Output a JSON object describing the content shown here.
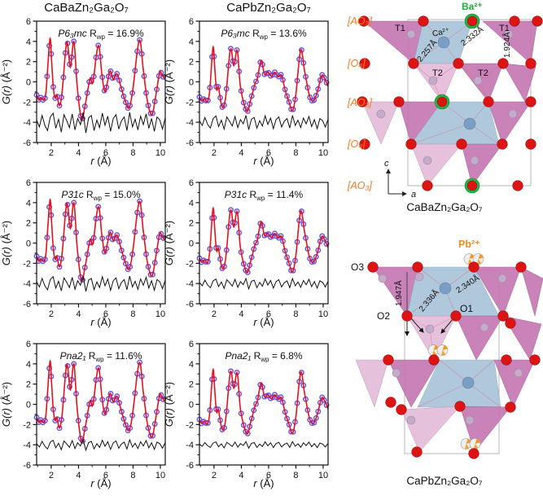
{
  "figure_titles": [
    "CaBaZn₂Ga₂O₇",
    "CaPbZn₂Ga₂O₇"
  ],
  "colors": {
    "data_marker": "#4629d9",
    "fit_line": "#e8101c",
    "diff_line": "#111111",
    "axis": "#111111",
    "orange_label": "#f47b20",
    "green_atom": "#26b043",
    "red_atom": "#dd1414",
    "grey_atom": "#c3abc9",
    "ca_atom": "#7b9ec4",
    "pink_dark": "#c478b2",
    "pink_light": "#e4bcd8",
    "blue_poly": "#a9c4d8",
    "pb_orange": "#f5991d"
  },
  "chart_data": {
    "type": "line",
    "xlabel_italic": "r",
    "xlabel_rest": " (Å)",
    "ylabel_italic": "G(r)",
    "ylabel_rest": " (Å⁻²)",
    "xlim": [
      0.93,
      10.36
    ],
    "ylim": [
      -6,
      6
    ],
    "xticks": [
      2,
      4,
      6,
      8,
      10
    ],
    "xminor": [
      1,
      3,
      5,
      7,
      9
    ],
    "yticks": [
      6,
      4,
      2,
      0,
      -2,
      -4,
      -6
    ],
    "yminor": [
      -5,
      -3,
      -1,
      1,
      3,
      5
    ],
    "r_label": "R",
    "r_sub": "wp",
    "eq": "=",
    "diff_offset": -4,
    "diff_noise": [
      0.15,
      -0.3,
      0.45,
      -0.2,
      -0.55,
      0.35,
      0.6,
      -0.4,
      0.2,
      -0.65,
      0.5,
      0.1,
      -0.35,
      0.55,
      -0.5,
      0.25,
      -0.15,
      0.65,
      -0.7,
      0.3,
      0.45,
      -0.55,
      0.15,
      -0.35,
      0.6,
      -0.2,
      0.4,
      -0.6,
      0.25,
      0.5,
      -0.45,
      0.1,
      0.35,
      -0.55,
      0.65,
      -0.3,
      0.2,
      -0.5,
      0.4,
      -0.15,
      0.55,
      -0.4,
      0.25,
      -0.6,
      0.35,
      0.15,
      -0.45,
      0.3
    ],
    "series": {
      "CaBa": [
        [
          0.93,
          -1.3
        ],
        [
          1.1,
          -1.8
        ],
        [
          1.25,
          -1.55
        ],
        [
          1.45,
          -1.8
        ],
        [
          1.62,
          -0.9
        ],
        [
          1.9,
          4.2
        ],
        [
          2.02,
          2.2
        ],
        [
          2.15,
          -0.5
        ],
        [
          2.28,
          -1.6
        ],
        [
          2.42,
          -1.3
        ],
        [
          2.6,
          -2.35
        ],
        [
          2.8,
          -1.0
        ],
        [
          3.14,
          3.9
        ],
        [
          3.4,
          1.45
        ],
        [
          3.66,
          4.0
        ],
        [
          3.9,
          -0.4
        ],
        [
          4.22,
          -3.7
        ],
        [
          4.5,
          -2.2
        ],
        [
          4.85,
          0.35
        ],
        [
          5.05,
          -0.05
        ],
        [
          5.45,
          3.6
        ],
        [
          5.72,
          0.7
        ],
        [
          5.95,
          -0.95
        ],
        [
          6.3,
          1.05
        ],
        [
          6.55,
          0.25
        ],
        [
          6.82,
          0.8
        ],
        [
          7.1,
          -0.45
        ],
        [
          7.4,
          -1.8
        ],
        [
          7.68,
          -2.6
        ],
        [
          7.95,
          -1.1
        ],
        [
          8.45,
          4.1
        ],
        [
          8.75,
          1.2
        ],
        [
          9.05,
          -1.9
        ],
        [
          9.38,
          -3.25
        ],
        [
          9.65,
          -1.5
        ],
        [
          9.95,
          0.9
        ],
        [
          10.15,
          0.6
        ],
        [
          10.36,
          0.25
        ]
      ],
      "CaPb": [
        [
          0.93,
          -1.5
        ],
        [
          1.1,
          -1.9
        ],
        [
          1.3,
          -1.65
        ],
        [
          1.5,
          -1.95
        ],
        [
          1.68,
          -0.9
        ],
        [
          1.92,
          3.4
        ],
        [
          2.05,
          1.4
        ],
        [
          2.18,
          -0.75
        ],
        [
          2.32,
          -0.55
        ],
        [
          2.6,
          -2.5
        ],
        [
          2.85,
          -1.5
        ],
        [
          3.2,
          3.2
        ],
        [
          3.45,
          1.6
        ],
        [
          3.7,
          3.1
        ],
        [
          3.95,
          -0.6
        ],
        [
          4.4,
          -2.9
        ],
        [
          4.7,
          -1.7
        ],
        [
          5.0,
          -0.2
        ],
        [
          5.18,
          0.35
        ],
        [
          5.45,
          2.1
        ],
        [
          5.7,
          0.75
        ],
        [
          5.95,
          0.95
        ],
        [
          6.2,
          0.55
        ],
        [
          6.45,
          0.95
        ],
        [
          6.7,
          0.5
        ],
        [
          6.95,
          0.65
        ],
        [
          7.2,
          -0.75
        ],
        [
          7.5,
          -2.0
        ],
        [
          7.75,
          -2.85
        ],
        [
          8.0,
          -1.2
        ],
        [
          8.35,
          3.15
        ],
        [
          8.65,
          1.0
        ],
        [
          9.0,
          -1.4
        ],
        [
          9.3,
          -1.85
        ],
        [
          9.6,
          -0.85
        ],
        [
          9.9,
          0.65
        ],
        [
          10.15,
          0.2
        ],
        [
          10.36,
          -0.45
        ]
      ]
    },
    "panels": [
      {
        "col": 0,
        "row": 0,
        "series": "CaBa",
        "model": "P6₃mc",
        "rwp": "16.9%",
        "diff_scale": 1.0
      },
      {
        "col": 1,
        "row": 0,
        "series": "CaPb",
        "model": "P6₃mc",
        "rwp": "13.6%",
        "diff_scale": 0.7
      },
      {
        "col": 0,
        "row": 1,
        "series": "CaBa",
        "model": "P31c",
        "rwp": "15.0%",
        "diff_scale": 0.75
      },
      {
        "col": 1,
        "row": 1,
        "series": "CaPb",
        "model": "P31c",
        "rwp": "11.4%",
        "diff_scale": 0.5
      },
      {
        "col": 0,
        "row": 2,
        "series": "CaBa",
        "model": "Pna2₁",
        "rwp": "11.6%",
        "diff_scale": 0.5
      },
      {
        "col": 1,
        "row": 2,
        "series": "CaPb",
        "model": "Pna2₁",
        "rwp": "6.8%",
        "diff_scale": 0.32
      }
    ]
  },
  "structures": {
    "top": {
      "caption": "CaBaZn₂Ga₂O₇",
      "layer_labels": [
        "[AO₃]",
        "[O₄]",
        "[AO₃]",
        "[O₄]",
        "[AO₃]"
      ],
      "ba_label": "Ba²⁺",
      "ca_label": "Ca²⁺",
      "t1_label": "T1",
      "t2_label": "T2",
      "bond_ca_1": "2.257Å",
      "bond_ca_2": "2.332Å",
      "bond_t": "1.924Å",
      "axis_c": "c",
      "axis_a": "a"
    },
    "bottom": {
      "caption": "CaPbZn₂Ga₂O₇",
      "pb_label": "Pb²⁺",
      "o3_label": "O3",
      "o2_label": "O2",
      "o1_label": "O1",
      "bond_1": "1.947Å",
      "bond_2": "2.336Å",
      "bond_3": "2.340Å"
    }
  }
}
